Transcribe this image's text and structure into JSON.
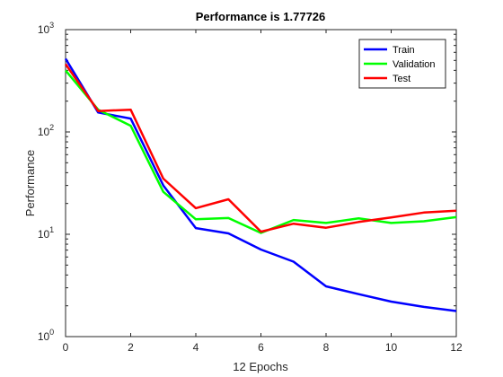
{
  "chart_data": {
    "type": "line",
    "title": "Performance is 1.77726",
    "xlabel": "12 Epochs",
    "ylabel": "Performance",
    "xlim": [
      0,
      12
    ],
    "ylim": [
      1,
      1000
    ],
    "yscale": "log",
    "grid": false,
    "legend_position": "top-right",
    "x": [
      0,
      1,
      2,
      3,
      4,
      5,
      6,
      7,
      8,
      9,
      10,
      11,
      12
    ],
    "x_tick_labels": [
      "0",
      "2",
      "4",
      "6",
      "8",
      "10",
      "12"
    ],
    "x_ticks": [
      0,
      2,
      4,
      6,
      8,
      10,
      12
    ],
    "y_ticks": [
      {
        "value": 1,
        "base": "10",
        "exp": "0"
      },
      {
        "value": 10,
        "base": "10",
        "exp": "1"
      },
      {
        "value": 100,
        "base": "10",
        "exp": "2"
      },
      {
        "value": 1000,
        "base": "10",
        "exp": "3"
      }
    ],
    "series": [
      {
        "name": "Train",
        "color": "#0000ff",
        "values": [
          520,
          155,
          135,
          30,
          11.5,
          10.2,
          7.1,
          5.4,
          3.1,
          2.6,
          2.2,
          1.95,
          1.78
        ]
      },
      {
        "name": "Validation",
        "color": "#00ff00",
        "values": [
          400,
          165,
          115,
          26,
          14,
          14.4,
          10.3,
          13.8,
          12.9,
          14.3,
          12.9,
          13.4,
          14.7
        ]
      },
      {
        "name": "Test",
        "color": "#ff0000",
        "values": [
          460,
          160,
          165,
          35,
          18,
          22,
          10.6,
          12.7,
          11.6,
          13.2,
          14.6,
          16.3,
          17.0
        ]
      }
    ]
  }
}
